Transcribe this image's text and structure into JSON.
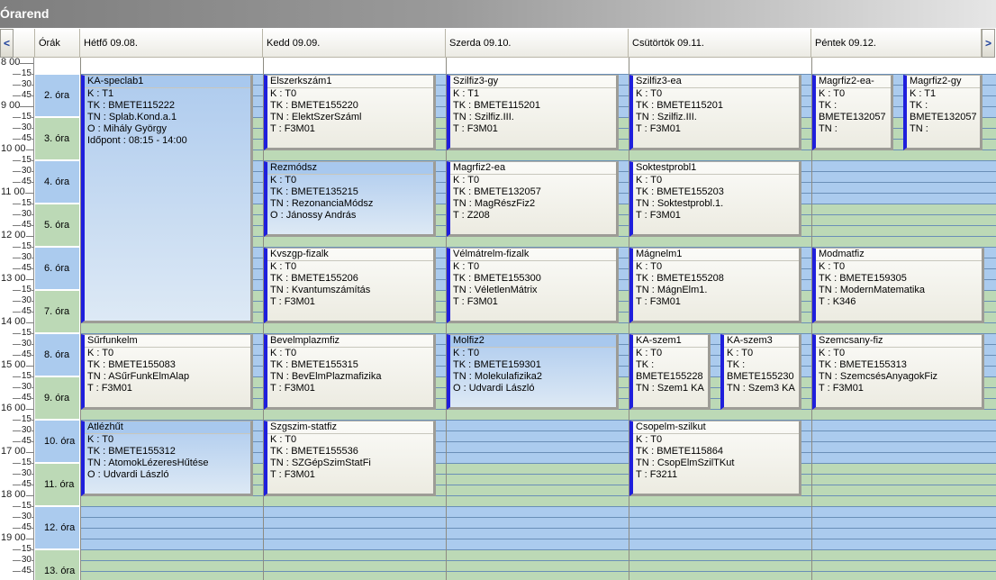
{
  "window": {
    "title": "Órarend"
  },
  "nav": {
    "prev_glyph": "<",
    "next_glyph": ">"
  },
  "header": {
    "hours_label": "Órák",
    "days": [
      {
        "label": "Hétfő  09.08."
      },
      {
        "label": "Kedd  09.09."
      },
      {
        "label": "Szerda  09.10."
      },
      {
        "label": "Csütörtök  09.11."
      },
      {
        "label": "Péntek  09.12."
      }
    ]
  },
  "time_labels": [
    "8 00",
    "15",
    "30",
    "45",
    "9 00",
    "15",
    "30",
    "45",
    "10 00",
    "15",
    "30",
    "45",
    "11 00",
    "15",
    "30",
    "45",
    "12 00",
    "15",
    "30",
    "45",
    "13 00",
    "15",
    "30",
    "45",
    "14 00",
    "15",
    "30",
    "45",
    "15 00",
    "15",
    "30",
    "45",
    "16 00",
    "15",
    "30",
    "45",
    "17 00",
    "15",
    "30",
    "45",
    "18 00",
    "15",
    "30",
    "45",
    "19 00",
    "15",
    "30",
    "45"
  ],
  "hours": [
    "2. óra",
    "3. óra",
    "4. óra",
    "5. óra",
    "6. óra",
    "7. óra",
    "8. óra",
    "9. óra",
    "10. óra",
    "11. óra",
    "12. óra",
    "13. óra"
  ],
  "colors": {
    "hour_blue": "#abcbee",
    "hour_green": "#bcd9b6",
    "accent_bar": "#1f1fdc",
    "selected": "#aecbee"
  },
  "events": [
    {
      "title": "KA-speclab1",
      "lines": [
        "K : T1",
        "TK : BMETE115222",
        "TN : Splab.Kond.a.1",
        "O : Mihály György",
        "Időpont : 08:15 - 14:00"
      ],
      "selected": true
    },
    {
      "title": "Elszerkszám1",
      "lines": [
        "K : T0",
        "TK : BMETE155220",
        "TN : ElektSzerSzáml",
        "T : F3M01"
      ],
      "selected": false
    },
    {
      "title": "Szilfiz3-gy",
      "lines": [
        "K : T1",
        "TK : BMETE115201",
        "TN : Szilfiz.III.",
        "T : F3M01"
      ],
      "selected": false
    },
    {
      "title": "Szilfiz3-ea",
      "lines": [
        "K : T0",
        "TK : BMETE115201",
        "TN : Szilfiz.III.",
        "T : F3M01"
      ],
      "selected": false
    },
    {
      "title": "Magrfiz2-ea-",
      "lines": [
        "K : T0",
        "TK :",
        "BMETE132057",
        "TN :"
      ],
      "selected": false
    },
    {
      "title": "Magrfiz2-gy",
      "lines": [
        "K : T1",
        "TK :",
        "BMETE132057",
        "TN :"
      ],
      "selected": false
    },
    {
      "title": "Rezmódsz",
      "lines": [
        "K : T0",
        "TK : BMETE135215",
        "TN : RezonanciaMódsz",
        "O : Jánossy András"
      ],
      "selected": true
    },
    {
      "title": "Magrfiz2-ea",
      "lines": [
        "K : T0",
        "TK : BMETE132057",
        "TN : MagRészFiz2",
        "T : Z208"
      ],
      "selected": false
    },
    {
      "title": "Soktestprobl1",
      "lines": [
        "K : T0",
        "TK : BMETE155203",
        "TN : Soktestprobl.1.",
        "T : F3M01"
      ],
      "selected": false
    },
    {
      "title": "Kvszgp-fizalk",
      "lines": [
        "K : T0",
        "TK : BMETE155206",
        "TN : Kvantumszámítás",
        "T : F3M01"
      ],
      "selected": false
    },
    {
      "title": "Vélmátrelm-fizalk",
      "lines": [
        "K : T0",
        "TK : BMETE155300",
        "TN : VéletlenMátrix",
        "T : F3M01"
      ],
      "selected": false
    },
    {
      "title": "Mágnelm1",
      "lines": [
        "K : T0",
        "TK : BMETE155208",
        "TN : MágnElm1.",
        "T : F3M01"
      ],
      "selected": false
    },
    {
      "title": "Modmatfiz",
      "lines": [
        "K : T0",
        "TK : BMETE159305",
        "TN : ModernMatematika",
        "T : K346"
      ],
      "selected": false
    },
    {
      "title": "Sűrfunkelm",
      "lines": [
        "K : T0",
        "TK : BMETE155083",
        "TN : ASűrFunkElmAlap",
        "T : F3M01"
      ],
      "selected": false
    },
    {
      "title": "Bevelmplazmfiz",
      "lines": [
        "K : T0",
        "TK : BMETE155315",
        "TN : BevElmPlazmafizika",
        "T : F3M01"
      ],
      "selected": false
    },
    {
      "title": "Molfiz2",
      "lines": [
        "K : T0",
        "TK : BMETE159301",
        "TN : Molekulafizika2",
        "O : Udvardi László"
      ],
      "selected": true
    },
    {
      "title": "KA-szem1",
      "lines": [
        "K : T0",
        "TK :",
        "BMETE155228",
        "TN : Szem1 KA"
      ],
      "selected": false
    },
    {
      "title": "KA-szem3",
      "lines": [
        "K : T0",
        "TK :",
        "BMETE155230",
        "TN : Szem3 KA"
      ],
      "selected": false
    },
    {
      "title": "Szemcsany-fiz",
      "lines": [
        "K : T0",
        "TK : BMETE155313",
        "TN : SzemcsésAnyagokFiz",
        "T : F3M01"
      ],
      "selected": false
    },
    {
      "title": "Atlézhűt",
      "lines": [
        "K : T0",
        "TK : BMETE155312",
        "TN : AtomokLézeresHűtése",
        "O : Udvardi László"
      ],
      "selected": true
    },
    {
      "title": "Szgszim-statfiz",
      "lines": [
        "K : T0",
        "TK : BMETE155536",
        "TN : SZGépSzimStatFi",
        "T : F3M01"
      ],
      "selected": false
    },
    {
      "title": "Csopelm-szilkut",
      "lines": [
        "K : T0",
        "TK : BMETE115864",
        "TN : CsopElmSzilTKut",
        "T : F3211"
      ],
      "selected": false
    }
  ]
}
